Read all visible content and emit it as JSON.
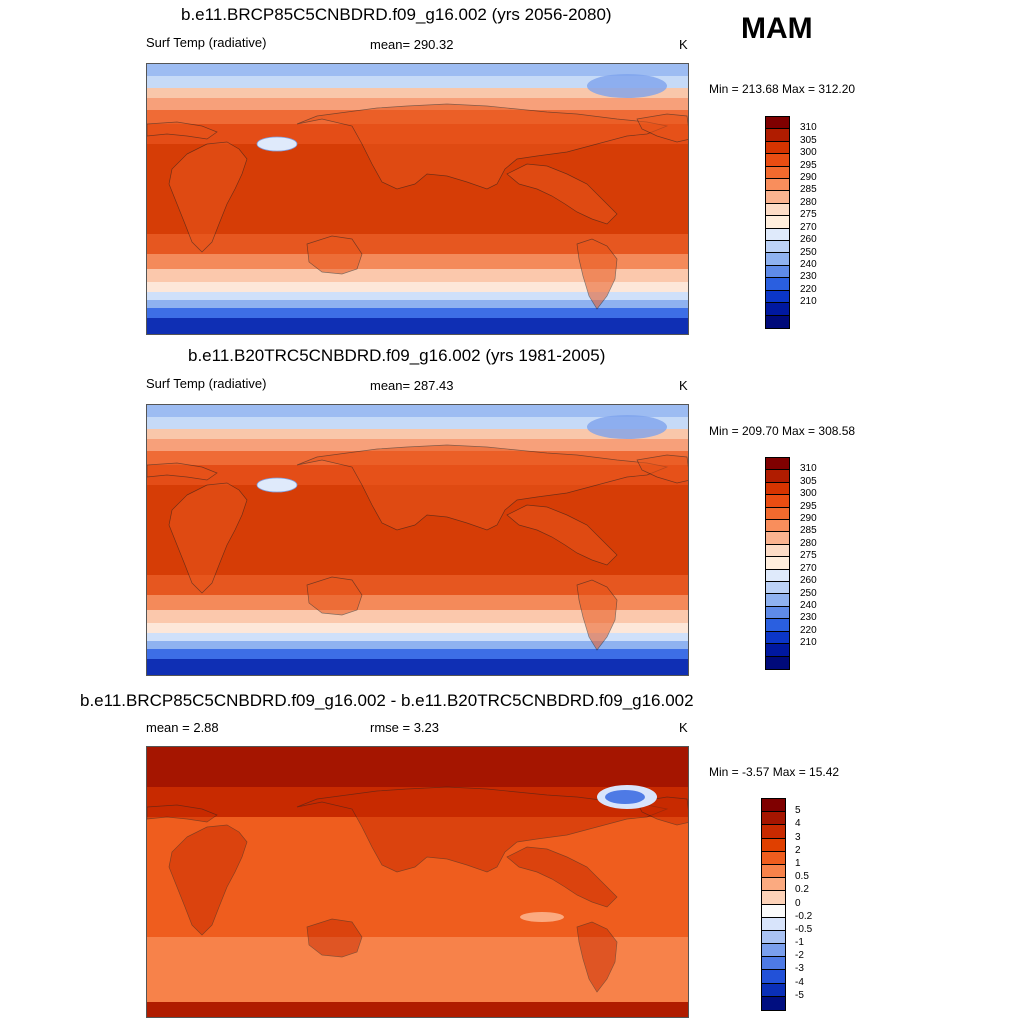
{
  "season": "MAM",
  "panels": [
    {
      "title": "b.e11.BRCP85C5CNBDRD.f09_g16.002 (yrs 2056-2080)",
      "left_label": "Surf Temp (radiative)",
      "stat_label": "mean= 290.32",
      "units": "K",
      "minmax": "Min = 213.68 Max = 312.20"
    },
    {
      "title": "b.e11.B20TRC5CNBDRD.f09_g16.002 (yrs 1981-2005)",
      "left_label": "Surf Temp (radiative)",
      "stat_label": "mean= 287.43",
      "units": "K",
      "minmax": "Min = 209.70 Max = 308.58"
    },
    {
      "title": "b.e11.BRCP85C5CNBDRD.f09_g16.002 - b.e11.B20TRC5CNBDRD.f09_g16.002",
      "left_label": "mean =   2.88",
      "stat_label": "rmse =   3.23",
      "units": "K",
      "minmax": "Min =  -3.57 Max =  15.42"
    }
  ],
  "chart_data": [
    {
      "type": "heatmap",
      "title": "b.e11.BRCP85C5CNBDRD.f09_g16.002 (yrs 2056-2080)",
      "variable": "Surf Temp (radiative)",
      "units": "K",
      "mean": 290.32,
      "min": 213.68,
      "max": 312.2,
      "colorbar_levels": [
        310,
        305,
        300,
        295,
        290,
        285,
        280,
        275,
        270,
        260,
        250,
        240,
        230,
        220,
        210
      ]
    },
    {
      "type": "heatmap",
      "title": "b.e11.B20TRC5CNBDRD.f09_g16.002 (yrs 1981-2005)",
      "variable": "Surf Temp (radiative)",
      "units": "K",
      "mean": 287.43,
      "min": 209.7,
      "max": 308.58,
      "colorbar_levels": [
        310,
        305,
        300,
        295,
        290,
        285,
        280,
        275,
        270,
        260,
        250,
        240,
        230,
        220,
        210
      ]
    },
    {
      "type": "heatmap",
      "title": "b.e11.BRCP85C5CNBDRD.f09_g16.002 - b.e11.B20TRC5CNBDRD.f09_g16.002",
      "units": "K",
      "mean": 2.88,
      "rmse": 3.23,
      "min": -3.57,
      "max": 15.42,
      "colorbar_levels": [
        "5",
        "4",
        "3",
        "2",
        "1",
        "0.5",
        "0.2",
        "0",
        "-0.2",
        "-0.5",
        "-1",
        "-2",
        "-3",
        "-4",
        "-5"
      ]
    }
  ],
  "colors": {
    "abs_scale": [
      "#7f0000",
      "#b01c00",
      "#d63400",
      "#ea4d12",
      "#f26a2e",
      "#f98e5c",
      "#fbb38f",
      "#fddcc6",
      "#ffeedd",
      "#dfeafb",
      "#bcd2f7",
      "#8fb2f0",
      "#5f8be8",
      "#2a5fe0",
      "#0b36c8",
      "#0018a0",
      "#000a7a"
    ],
    "diff_scale": [
      "#7f0000",
      "#a51500",
      "#c82a00",
      "#e04000",
      "#ef5d1e",
      "#f7824a",
      "#fbaa80",
      "#fdd2b8",
      "#fbfbfb",
      "#d8e4fb",
      "#a9c2f3",
      "#7a9fed",
      "#4e7ae5",
      "#2251d8",
      "#0a2fb8",
      "#000e80"
    ]
  }
}
